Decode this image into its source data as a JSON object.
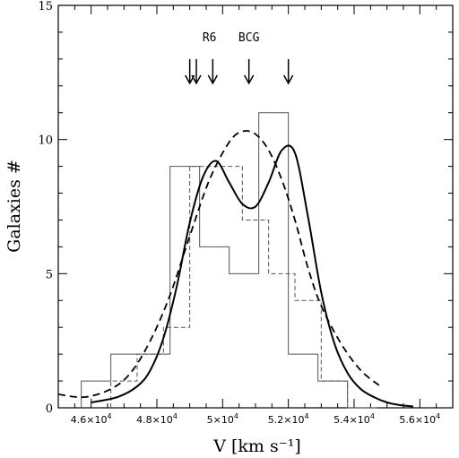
{
  "chart_data": {
    "type": "histogram",
    "title": "",
    "xlabel": "V [km s⁻¹]",
    "ylabel": "Galaxies #",
    "xlim": [
      45000,
      57000
    ],
    "ylim": [
      0,
      15
    ],
    "x_ticks": [
      {
        "value": 46000,
        "mant": "4.6",
        "exp": "4"
      },
      {
        "value": 48000,
        "mant": "4.8",
        "exp": "4"
      },
      {
        "value": 50000,
        "mant": "5",
        "exp": "4"
      },
      {
        "value": 52000,
        "mant": "5.2",
        "exp": "4"
      },
      {
        "value": 54000,
        "mant": "5.4",
        "exp": "4"
      },
      {
        "value": 56000,
        "mant": "5.6",
        "exp": "4"
      }
    ],
    "y_ticks": [
      0,
      5,
      10,
      15
    ],
    "series": [
      {
        "style": "solid-histogram",
        "edges": [
          45700,
          46600,
          47500,
          48400,
          49300,
          50200,
          51100,
          52000,
          52900,
          53800,
          54700
        ],
        "counts": [
          1,
          2,
          2,
          9,
          6,
          5,
          11,
          2,
          1,
          0
        ]
      },
      {
        "style": "dashed-histogram",
        "edges": [
          46600,
          47400,
          48200,
          49000,
          49800,
          50600,
          51400,
          52200,
          53000,
          53800
        ],
        "counts": [
          1,
          2,
          3,
          9,
          9,
          7,
          5,
          4,
          1
        ]
      },
      {
        "style": "solid-curve",
        "x": [
          46000,
          46800,
          47400,
          47800,
          48200,
          48600,
          49000,
          49400,
          49800,
          50200,
          50600,
          51000,
          51400,
          51800,
          52200,
          52600,
          53000,
          53400,
          53800,
          54200,
          54600,
          55000,
          55400,
          55800
        ],
        "y": [
          0.2,
          0.4,
          0.8,
          1.4,
          2.6,
          4.5,
          6.9,
          8.6,
          9.2,
          8.4,
          7.6,
          7.5,
          8.4,
          9.6,
          9.5,
          7.1,
          4.3,
          2.4,
          1.3,
          0.7,
          0.4,
          0.2,
          0.1,
          0.05
        ]
      },
      {
        "style": "dashed-curve",
        "x": [
          45000,
          45800,
          46600,
          47200,
          47800,
          48400,
          49000,
          49600,
          50200,
          50600,
          51000,
          51400,
          51800,
          52200,
          52600,
          53000,
          53600,
          54200,
          54800
        ],
        "y": [
          0.5,
          0.4,
          0.7,
          1.3,
          2.5,
          4.2,
          6.4,
          8.5,
          9.9,
          10.3,
          10.2,
          9.6,
          8.5,
          7.0,
          5.2,
          3.8,
          2.4,
          1.4,
          0.8
        ]
      }
    ],
    "arrows": [
      49000,
      49200,
      49700,
      50800,
      52000
    ],
    "annotations": [
      {
        "text": "R6",
        "x": 49600
      },
      {
        "text": "BCG",
        "x": 50800
      }
    ]
  }
}
